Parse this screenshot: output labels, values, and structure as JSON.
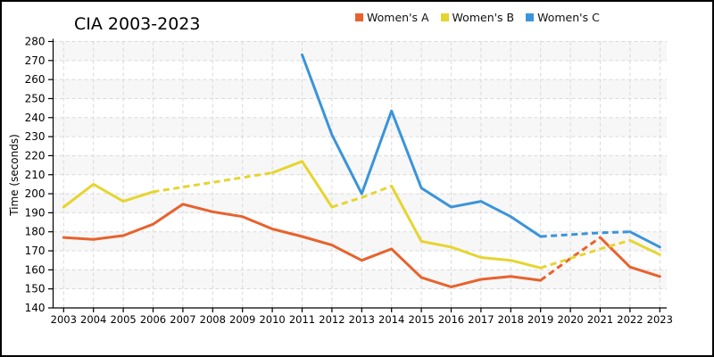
{
  "header": {
    "title": "CIA 2003-2023"
  },
  "chart_data": {
    "type": "line",
    "title": "CIA 2003-2023",
    "xlabel": "",
    "ylabel": "Time (seconds)",
    "legend_position": "top",
    "grid": "dashed horizontal and vertical gridlines with alternating horizontal bands",
    "band_color": "#f7f7f7",
    "grid_color": "#d9d9d9",
    "axis_color": "#000000",
    "x": [
      2003,
      2004,
      2005,
      2006,
      2007,
      2008,
      2009,
      2010,
      2011,
      2012,
      2013,
      2014,
      2015,
      2016,
      2017,
      2018,
      2019,
      2020,
      2021,
      2022,
      2023
    ],
    "ylim": [
      140,
      280
    ],
    "ytick_step": 10,
    "series": [
      {
        "name": "Women's A",
        "color": "#e8622d",
        "x": [
          2003,
          2004,
          2005,
          2006,
          2007,
          2008,
          2009,
          2010,
          2011,
          2012,
          2013,
          2014,
          2015,
          2016,
          2017,
          2018,
          2019,
          2020,
          2021,
          2022,
          2023
        ],
        "values": [
          177,
          176,
          178,
          184,
          194.5,
          190.5,
          188,
          181.5,
          177.5,
          173,
          165,
          171,
          156,
          151,
          155,
          156.5,
          154.5,
          166,
          177,
          161.5,
          156.5
        ],
        "dashed_spans": [
          [
            2019,
            2021
          ]
        ]
      },
      {
        "name": "Women's B",
        "color": "#e6d530",
        "x": [
          2003,
          2004,
          2005,
          2006,
          2007,
          2008,
          2009,
          2010,
          2011,
          2012,
          2013,
          2014,
          2015,
          2016,
          2017,
          2018,
          2019,
          2020,
          2021,
          2022,
          2023
        ],
        "values": [
          193,
          205,
          196,
          201,
          203.5,
          206,
          208.5,
          211,
          217,
          193,
          198,
          204,
          175,
          172,
          166.5,
          165,
          161,
          166,
          171,
          175.5,
          168
        ],
        "dashed_spans": [
          [
            2006,
            2010
          ],
          [
            2012,
            2014
          ],
          [
            2019,
            2022
          ]
        ]
      },
      {
        "name": "Women's C",
        "color": "#3b94da",
        "x": [
          2011,
          2012,
          2013,
          2014,
          2015,
          2016,
          2017,
          2018,
          2019,
          2020,
          2021,
          2022,
          2023
        ],
        "values": [
          273,
          231,
          200,
          243.5,
          203,
          193,
          196,
          188,
          177.5,
          178.5,
          179.5,
          180,
          172
        ],
        "dashed_spans": [
          [
            2019,
            2022
          ]
        ]
      }
    ]
  }
}
